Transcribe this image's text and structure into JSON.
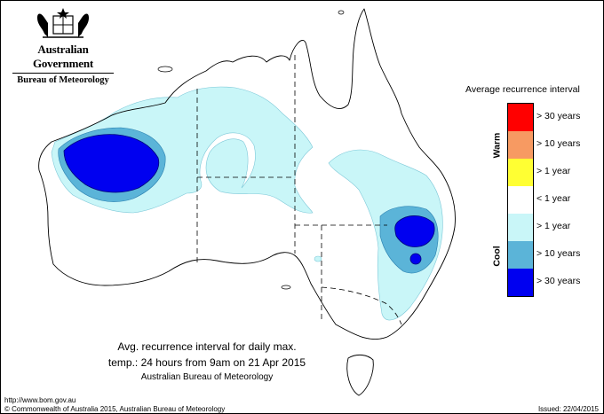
{
  "header": {
    "government": "Australian Government",
    "bureau": "Bureau of Meteorology"
  },
  "legend": {
    "title": "Average recurrence interval",
    "warm_label": "Warm",
    "cool_label": "Cool",
    "items": [
      {
        "label": "> 30 years",
        "color": "#ff0000"
      },
      {
        "label": "> 10 years",
        "color": "#f79a62"
      },
      {
        "label": "> 1 year",
        "color": "#ffff33"
      },
      {
        "label": "< 1 year",
        "color": "#ffffff"
      },
      {
        "label": "> 1 year",
        "color": "#c9f6f8"
      },
      {
        "label": "> 10 years",
        "color": "#5bb4d8"
      },
      {
        "label": "> 30 years",
        "color": "#0000f0"
      }
    ]
  },
  "caption": {
    "line1": "Avg. recurrence interval for daily max.",
    "line2": "temp.: 24 hours from 9am on 21 Apr 2015",
    "line3": "Australian Bureau of Meteorology"
  },
  "footer": {
    "url": "http://www.bom.gov.au",
    "copyright": "© Commonwealth of Australia 2015, Australian Bureau of Meteorology",
    "issued": "Issued: 22/04/2015"
  },
  "map": {
    "outline_color": "#000000",
    "land_color": "#ffffff"
  }
}
